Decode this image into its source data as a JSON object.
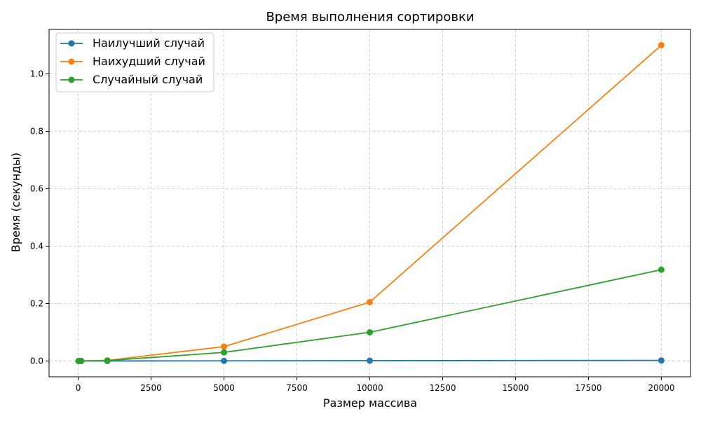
{
  "chart_data": {
    "type": "line",
    "title": "Время выполнения сортировки",
    "xlabel": "Размер массива",
    "ylabel": "Время (секунды)",
    "xlim": [
      -1000,
      21000
    ],
    "ylim": [
      -0.055,
      1.155
    ],
    "xticks": [
      0,
      2500,
      5000,
      7500,
      10000,
      12500,
      15000,
      17500,
      20000
    ],
    "yticks": [
      0.0,
      0.2,
      0.4,
      0.6,
      0.8,
      1.0
    ],
    "xtick_labels": [
      "0",
      "2500",
      "5000",
      "7500",
      "10000",
      "12500",
      "15000",
      "17500",
      "20000"
    ],
    "ytick_labels": [
      "0.0",
      "0.2",
      "0.4",
      "0.6",
      "0.8",
      "1.0"
    ],
    "grid": true,
    "legend_position": "top-left",
    "x": [
      10,
      100,
      1000,
      5000,
      10000,
      20000
    ],
    "series": [
      {
        "name": "Наилучший случай",
        "color": "#1f77b4",
        "values": [
          0.0,
          0.0,
          0.0,
          0.0005,
          0.001,
          0.002
        ]
      },
      {
        "name": "Наихудший случай",
        "color": "#ff7f0e",
        "values": [
          0.0,
          0.0003,
          0.002,
          0.05,
          0.205,
          1.1
        ]
      },
      {
        "name": "Случайный случай",
        "color": "#2ca02c",
        "values": [
          0.0,
          0.0002,
          0.0015,
          0.03,
          0.1,
          0.318
        ]
      }
    ]
  }
}
